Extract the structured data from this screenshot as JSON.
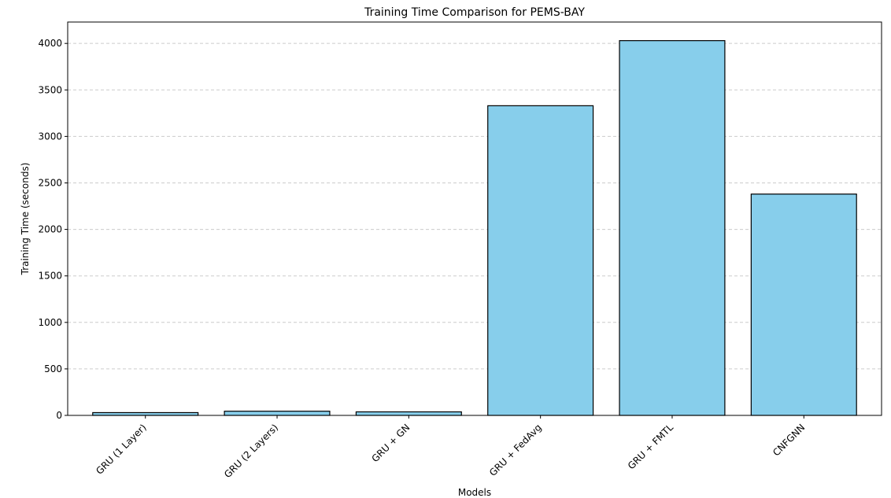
{
  "chart_data": {
    "type": "bar",
    "title": "Training Time Comparison for PEMS-BAY",
    "xlabel": "Models",
    "ylabel": "Training Time (seconds)",
    "categories": [
      "GRU (1 Layer)",
      "GRU (2 Layers)",
      "GRU + GN",
      "GRU + FedAvg",
      "GRU + FMTL",
      "CNFGNN"
    ],
    "values": [
      30,
      45,
      38,
      3330,
      4030,
      2380
    ],
    "ylim": [
      0,
      4230
    ],
    "yticks": [
      0,
      500,
      1000,
      1500,
      2000,
      2500,
      3000,
      3500,
      4000
    ],
    "grid": "y-dashed",
    "legend": "none",
    "colors": {
      "bar_fill": "#87ceeb",
      "bar_edge": "#000000",
      "grid": "#cccccc",
      "axes": "#000000"
    }
  }
}
